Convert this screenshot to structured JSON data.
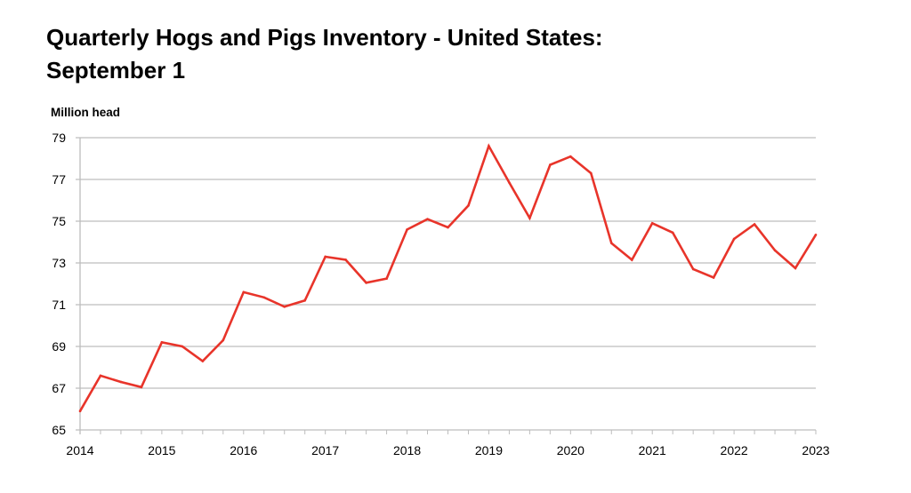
{
  "chart_data": {
    "type": "line",
    "title_line1": "Quarterly Hogs and Pigs Inventory - United States:",
    "title_line2": "September 1",
    "ylabel": "Million head",
    "xlabel": "",
    "ylim": [
      65,
      79
    ],
    "yticks": [
      65,
      67,
      69,
      71,
      73,
      75,
      77,
      79
    ],
    "xlim": [
      2014,
      2023
    ],
    "xticks": [
      2014,
      2015,
      2016,
      2017,
      2018,
      2019,
      2020,
      2021,
      2022,
      2023
    ],
    "grid": true,
    "line_color": "#e8342a",
    "series": [
      {
        "x": [
          2014,
          2014.25,
          2014.5,
          2014.75,
          2015,
          2015.25,
          2015.5,
          2015.75,
          2016,
          2016.25,
          2016.5,
          2016.75,
          2017,
          2017.25,
          2017.5,
          2017.75,
          2018,
          2018.25,
          2018.5,
          2018.75,
          2019,
          2019.25,
          2019.5,
          2019.75,
          2020,
          2020.25,
          2020.5,
          2020.75,
          2021,
          2021.25,
          2021.5,
          2021.75,
          2022,
          2022.25,
          2022.5,
          2022.75,
          2023
        ],
        "values": [
          65.9,
          67.6,
          67.3,
          67.05,
          69.2,
          69.0,
          68.3,
          69.3,
          71.6,
          71.35,
          70.9,
          71.2,
          73.3,
          73.15,
          72.05,
          72.25,
          74.6,
          75.1,
          74.7,
          75.75,
          78.6,
          76.85,
          75.15,
          77.7,
          78.1,
          77.3,
          73.95,
          73.15,
          74.9,
          74.45,
          72.7,
          72.3,
          74.15,
          74.85,
          73.6,
          72.75,
          74.35
        ]
      }
    ]
  }
}
